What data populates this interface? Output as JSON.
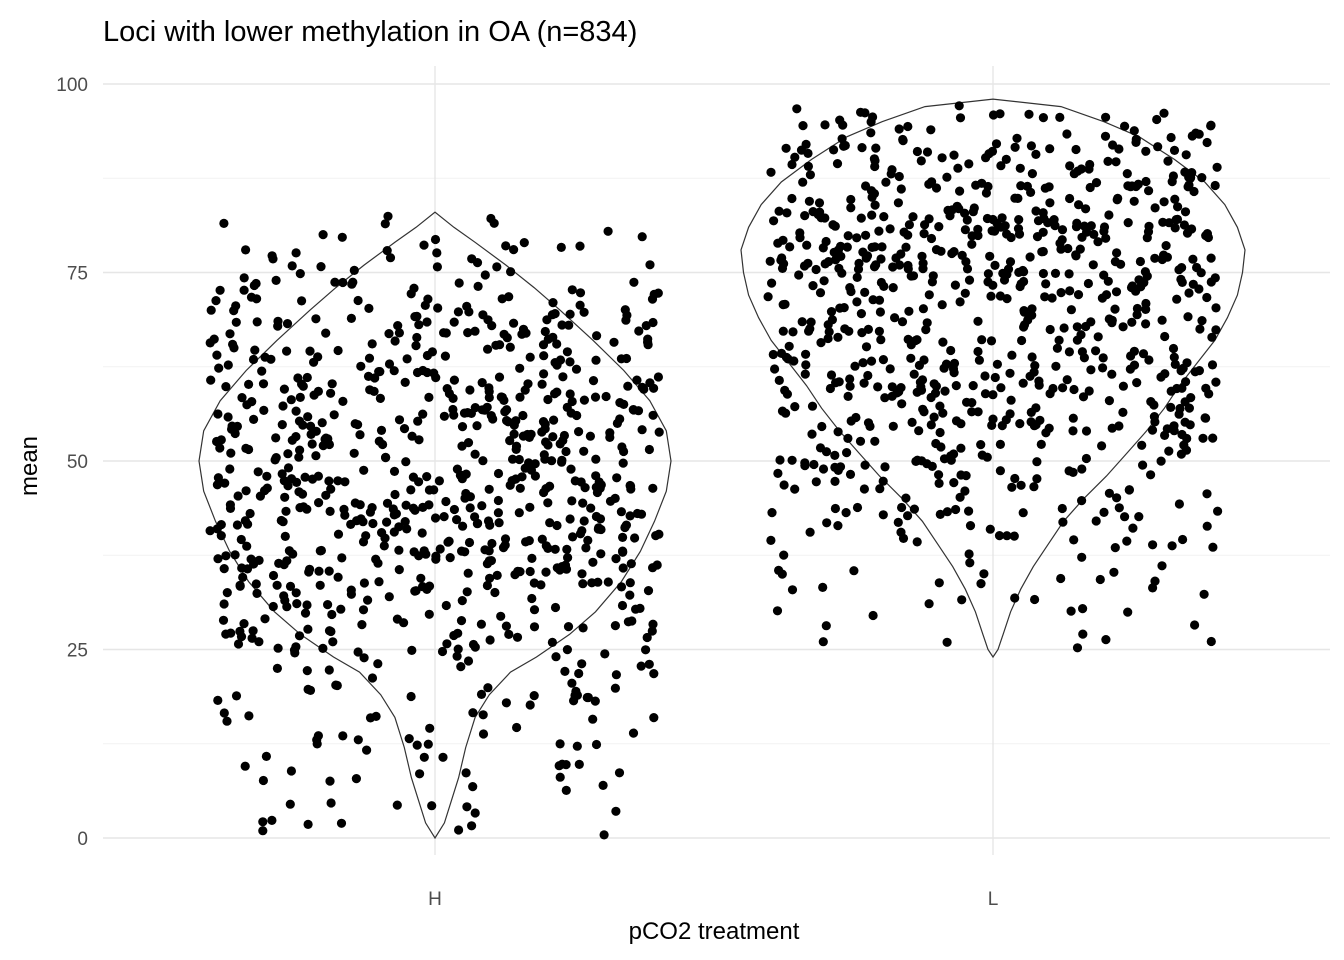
{
  "chart_data": {
    "type": "scatter",
    "subtype": "violin with jittered points",
    "title": "Loci with lower methylation in OA (n=834)",
    "xlabel": "pCO2 treatment",
    "ylabel": "mean",
    "categories": [
      "H",
      "L"
    ],
    "ylim": [
      -3,
      103
    ],
    "yticks": [
      0,
      25,
      50,
      75,
      100
    ],
    "ytick_labels": [
      "0",
      "25",
      "50",
      "75",
      "100"
    ],
    "grid": true,
    "legend": "none",
    "point_color": "#000000",
    "violin_outline_color": "#333333",
    "series": [
      {
        "category": "H",
        "n": 834,
        "range": [
          0,
          83
        ],
        "violin_density_profile": [
          [
            0,
            0.0
          ],
          [
            2,
            0.04
          ],
          [
            5,
            0.07
          ],
          [
            8,
            0.1
          ],
          [
            12,
            0.13
          ],
          [
            16,
            0.17
          ],
          [
            19,
            0.23
          ],
          [
            22,
            0.32
          ],
          [
            24,
            0.43
          ],
          [
            27,
            0.57
          ],
          [
            30,
            0.68
          ],
          [
            34,
            0.79
          ],
          [
            38,
            0.87
          ],
          [
            42,
            0.93
          ],
          [
            46,
            0.98
          ],
          [
            50,
            1.0
          ],
          [
            54,
            0.98
          ],
          [
            58,
            0.91
          ],
          [
            62,
            0.8
          ],
          [
            66,
            0.67
          ],
          [
            70,
            0.53
          ],
          [
            73,
            0.42
          ],
          [
            76,
            0.3
          ],
          [
            79,
            0.17
          ],
          [
            81,
            0.08
          ],
          [
            83,
            0.0
          ]
        ],
        "points_summary": "834 jittered points spread between 0 and 83, densest around 30–65"
      },
      {
        "category": "L",
        "n": 834,
        "range": [
          24,
          98
        ],
        "violin_density_profile": [
          [
            24,
            0.0
          ],
          [
            25,
            0.02
          ],
          [
            27,
            0.04
          ],
          [
            30,
            0.07
          ],
          [
            33,
            0.11
          ],
          [
            36,
            0.16
          ],
          [
            39,
            0.22
          ],
          [
            42,
            0.28
          ],
          [
            45,
            0.36
          ],
          [
            48,
            0.45
          ],
          [
            51,
            0.53
          ],
          [
            54,
            0.61
          ],
          [
            57,
            0.68
          ],
          [
            60,
            0.74
          ],
          [
            63,
            0.81
          ],
          [
            66,
            0.88
          ],
          [
            69,
            0.93
          ],
          [
            72,
            0.97
          ],
          [
            75,
            0.99
          ],
          [
            78,
            1.0
          ],
          [
            81,
            0.97
          ],
          [
            84,
            0.92
          ],
          [
            87,
            0.84
          ],
          [
            90,
            0.72
          ],
          [
            93,
            0.58
          ],
          [
            95,
            0.44
          ],
          [
            97,
            0.27
          ],
          [
            98,
            0.0
          ]
        ],
        "points_summary": "834 jittered points spread between 24 and 98, densest around 60–92"
      }
    ]
  }
}
